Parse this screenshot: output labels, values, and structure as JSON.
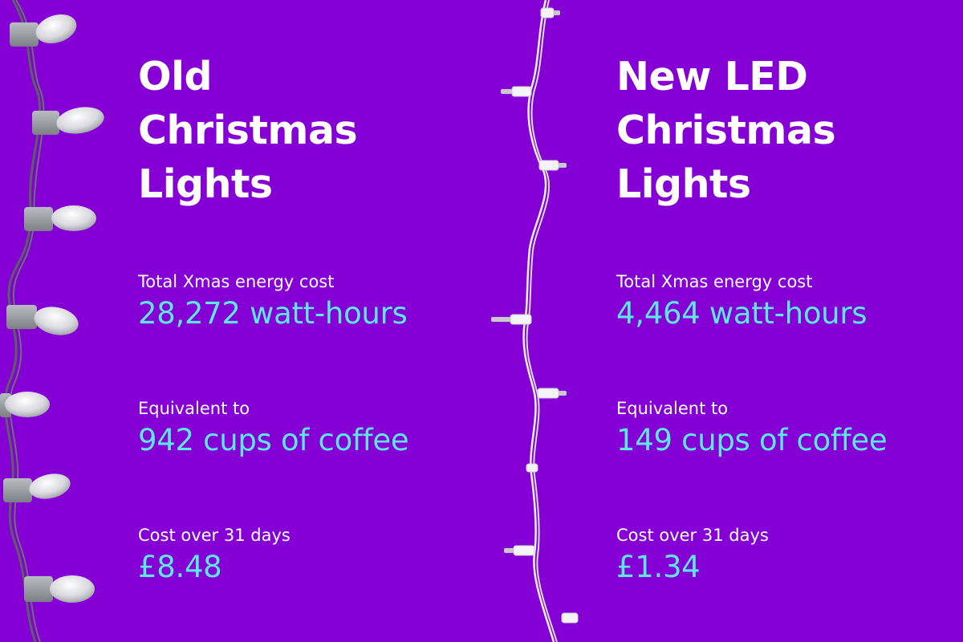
{
  "left": {
    "title_lines": [
      "Old",
      "Christmas",
      "Lights"
    ],
    "energy": {
      "label": "Total Xmas energy cost",
      "value": "28,272 watt-hours"
    },
    "coffee": {
      "label": "Equivalent to",
      "value": "942 cups of coffee"
    },
    "cost": {
      "label": "Cost over 31 days",
      "value": "£8.48"
    }
  },
  "right": {
    "title_lines": [
      "New LED",
      "Christmas",
      "Lights"
    ],
    "energy": {
      "label": "Total Xmas energy cost",
      "value": "4,464 watt-hours"
    },
    "coffee": {
      "label": "Equivalent to",
      "value": "149 cups of coffee"
    },
    "cost": {
      "label": "Cost over 31 days",
      "value": "£1.34"
    }
  },
  "colors": {
    "background": "#8400d4",
    "heading": "#ffffff",
    "label": "#ffffff",
    "value": "#5ee7ea"
  },
  "decor": {
    "left_strip": "incandescent-bulb-string",
    "center_strip": "led-mini-light-string"
  }
}
